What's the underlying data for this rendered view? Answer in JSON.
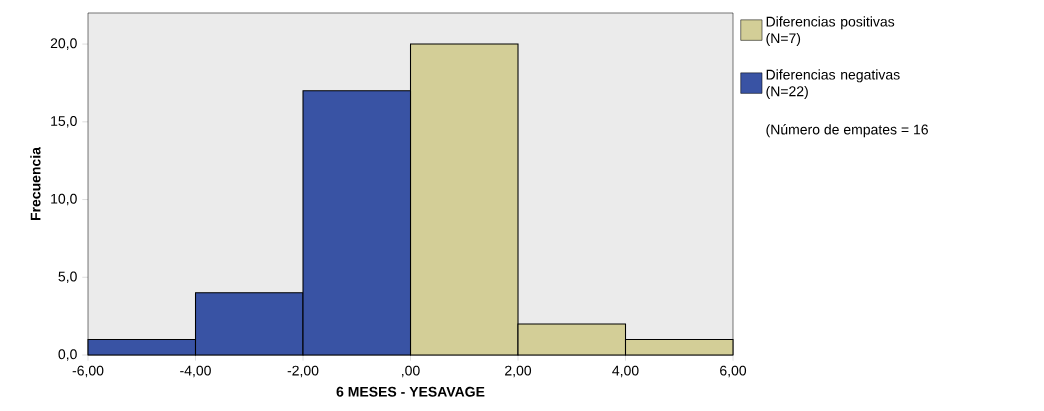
{
  "chart_data": {
    "type": "histogram",
    "xlabel": "6 MESES - YESAVAGE",
    "ylabel": "Frecuencia",
    "bins": [
      -6,
      -4,
      -2,
      0,
      2,
      4,
      6
    ],
    "series": [
      {
        "name": "Diferencias positivas (N=7)",
        "color": "#d3ce97",
        "values": [
          null,
          null,
          null,
          20,
          2,
          1
        ]
      },
      {
        "name": "Diferencias negativas (N=22)",
        "color": "#3953a4",
        "values": [
          1,
          4,
          17,
          null,
          null,
          null
        ]
      }
    ],
    "xlim": [
      -6,
      6
    ],
    "ylim": [
      0,
      22
    ],
    "xticks": [
      {
        "value": -6,
        "label": "-6,00"
      },
      {
        "value": -4,
        "label": "-4,00"
      },
      {
        "value": -2,
        "label": "-2,00"
      },
      {
        "value": 0,
        "label": ",00"
      },
      {
        "value": 2,
        "label": "2,00"
      },
      {
        "value": 4,
        "label": "4,00"
      },
      {
        "value": 6,
        "label": "6,00"
      }
    ],
    "yticks": [
      {
        "value": 0,
        "label": "0,0"
      },
      {
        "value": 5,
        "label": "5,0"
      },
      {
        "value": 10,
        "label": "10,0"
      },
      {
        "value": 15,
        "label": "15,0"
      },
      {
        "value": 20,
        "label": "20,0"
      }
    ],
    "grid": false,
    "legend": "right",
    "annotations": [
      "(Número de empates = 16"
    ]
  }
}
